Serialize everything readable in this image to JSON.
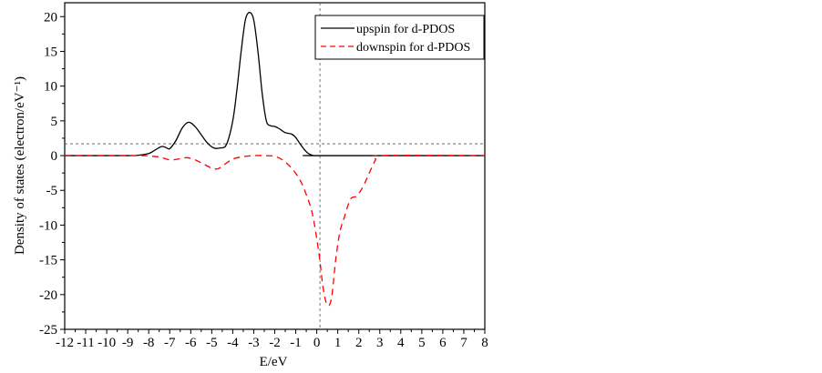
{
  "chart_data": {
    "type": "line",
    "title": "",
    "xlabel": "E/eV",
    "ylabel": "Density of states (electron/eV⁻¹)",
    "xlim": [
      -12,
      8
    ],
    "ylim": [
      -25,
      22
    ],
    "xticks": [
      -12,
      -11,
      -10,
      -9,
      -8,
      -7,
      -6,
      -5,
      -4,
      -3,
      -2,
      -1,
      0,
      1,
      2,
      3,
      4,
      5,
      6,
      7,
      8
    ],
    "yticks": [
      -25,
      -20,
      -15,
      -10,
      -5,
      0,
      5,
      10,
      15,
      20
    ],
    "grid": false,
    "legend_position": "top-right",
    "reference_lines": {
      "vertical_x": 0.15,
      "horizontal_y": 1.7
    },
    "series": [
      {
        "name": "upspin for d-PDOS",
        "color": "#000000",
        "style": "solid",
        "x": [
          -12,
          -9,
          -8.5,
          -8,
          -7.7,
          -7.4,
          -7.2,
          -7.0,
          -6.7,
          -6.4,
          -6.1,
          -5.8,
          -5.5,
          -5.2,
          -4.9,
          -4.6,
          -4.3,
          -4.0,
          -3.8,
          -3.6,
          -3.4,
          -3.2,
          -3.0,
          -2.8,
          -2.6,
          -2.4,
          -2.2,
          -2.0,
          -1.8,
          -1.5,
          -1.2,
          -1.0,
          -0.8,
          -0.6,
          -0.4,
          -0.2,
          0,
          8
        ],
        "y": [
          0,
          0,
          0.05,
          0.3,
          0.8,
          1.3,
          1.2,
          1.0,
          2.2,
          4.0,
          4.8,
          4.2,
          3.0,
          1.8,
          1.1,
          1.1,
          1.6,
          5.0,
          9.5,
          15,
          19.5,
          20.6,
          19.5,
          15,
          9,
          5.0,
          4.3,
          4.2,
          3.9,
          3.3,
          3.1,
          2.6,
          1.7,
          0.9,
          0.3,
          0.05,
          0,
          0
        ]
      },
      {
        "name": "downspin for d-PDOS",
        "color": "#ff0000",
        "style": "dashed",
        "x": [
          -12,
          -8.5,
          -8,
          -7.5,
          -7,
          -6.6,
          -6.2,
          -5.8,
          -5.4,
          -5.0,
          -4.7,
          -4.4,
          -4.0,
          -3.5,
          -3.0,
          -2.5,
          -2.0,
          -1.6,
          -1.2,
          -0.8,
          -0.5,
          -0.2,
          0.1,
          0.3,
          0.5,
          0.7,
          0.9,
          1.1,
          1.3,
          1.6,
          1.9,
          2.2,
          2.5,
          2.8,
          3.0,
          8
        ],
        "y": [
          0,
          0,
          -0.05,
          -0.2,
          -0.6,
          -0.5,
          -0.3,
          -0.6,
          -1.2,
          -1.8,
          -1.9,
          -1.3,
          -0.5,
          -0.15,
          0,
          0,
          -0.1,
          -0.7,
          -1.8,
          -3.5,
          -5.6,
          -8.5,
          -14,
          -19,
          -21.5,
          -20.5,
          -15,
          -11,
          -9,
          -6.3,
          -5.8,
          -4.5,
          -2.5,
          -0.6,
          0,
          0
        ]
      }
    ]
  }
}
